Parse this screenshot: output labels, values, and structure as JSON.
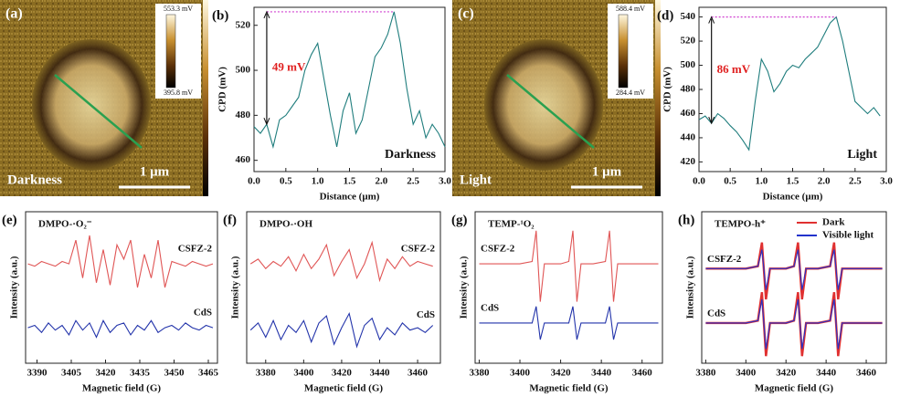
{
  "images": [
    {
      "label": "(a)",
      "cbar_max": "553.3 mV",
      "cbar_min": "395.8 mV",
      "condition": "Darkness",
      "scale": "1 μm"
    },
    {
      "label": "(c)",
      "cbar_max": "588.4 mV",
      "cbar_min": "284.4 mV",
      "condition": "Light",
      "scale": "1 μm"
    }
  ],
  "chart_data": [
    {
      "type": "line",
      "label": "(b)",
      "xlabel": "Distance (μm)",
      "ylabel": "CPD (mV)",
      "delta_label": "49 mV",
      "condition": "Darkness",
      "x": [
        0,
        0.1,
        0.2,
        0.3,
        0.4,
        0.5,
        0.6,
        0.7,
        0.8,
        0.9,
        1.0,
        1.1,
        1.2,
        1.3,
        1.4,
        1.5,
        1.6,
        1.7,
        1.8,
        1.9,
        2.0,
        2.1,
        2.2,
        2.3,
        2.4,
        2.5,
        2.6,
        2.7,
        2.8,
        2.9,
        3.0
      ],
      "series": [
        {
          "color": "#1f7d7d",
          "values": [
            475,
            472,
            476,
            466,
            478,
            480,
            484,
            488,
            500,
            507,
            512,
            496,
            480,
            466,
            482,
            490,
            472,
            478,
            492,
            506,
            510,
            516,
            526,
            512,
            492,
            476,
            482,
            470,
            476,
            472,
            466
          ]
        }
      ],
      "xlim": [
        0,
        3.0
      ],
      "ylim": [
        455,
        528
      ],
      "xticks": [
        {
          "value": 0,
          "label": "0.0"
        },
        0.5,
        {
          "value": 1,
          "label": "1.0"
        },
        1.5,
        {
          "value": 2,
          "label": "2.0"
        },
        2.5,
        {
          "value": 3,
          "label": "3.0"
        }
      ],
      "yticks": [
        460,
        480,
        500,
        520
      ]
    },
    {
      "type": "line",
      "label": "(d)",
      "xlabel": "Distance (μm)",
      "ylabel": "CPD (mV)",
      "delta_label": "86 mV",
      "condition": "Light",
      "x": [
        0,
        0.1,
        0.2,
        0.3,
        0.4,
        0.5,
        0.6,
        0.7,
        0.8,
        0.9,
        1.0,
        1.1,
        1.2,
        1.3,
        1.4,
        1.5,
        1.6,
        1.7,
        1.8,
        1.9,
        2.0,
        2.1,
        2.2,
        2.3,
        2.4,
        2.5,
        2.6,
        2.7,
        2.8,
        2.9
      ],
      "series": [
        {
          "color": "#1f7d7d",
          "values": [
            455,
            458,
            452,
            460,
            456,
            450,
            445,
            438,
            430,
            470,
            505,
            495,
            478,
            485,
            495,
            500,
            498,
            505,
            510,
            515,
            525,
            535,
            540,
            520,
            495,
            470,
            465,
            460,
            465,
            458
          ]
        }
      ],
      "xlim": [
        0,
        3.0
      ],
      "ylim": [
        412,
        548
      ],
      "xticks": [
        {
          "value": 0,
          "label": "0.0"
        },
        0.5,
        {
          "value": 1,
          "label": "1.0"
        },
        1.5,
        {
          "value": 2,
          "label": "2.0"
        },
        2.5,
        {
          "value": 3,
          "label": "3.0"
        }
      ],
      "yticks": [
        420,
        440,
        460,
        480,
        500,
        520,
        540
      ]
    },
    {
      "type": "line",
      "label": "(e)",
      "title": "DMPO-·O₂⁻",
      "xlabel": "Magnetic field (G)",
      "ylabel": "Intensity (a.u.)",
      "x": [
        3386,
        3389,
        3392,
        3395,
        3398,
        3401,
        3404,
        3407,
        3410,
        3413,
        3416,
        3419,
        3422,
        3425,
        3428,
        3431,
        3434,
        3437,
        3440,
        3443,
        3446,
        3449,
        3452,
        3455,
        3458,
        3461,
        3464,
        3467
      ],
      "series": [
        {
          "name": "CSFZ-2",
          "color": "#e05555",
          "values": [
            1.2,
            1.1,
            1.3,
            1.2,
            1.1,
            1.3,
            1.2,
            2.2,
            0.6,
            2.4,
            0.4,
            1.8,
            0.3,
            2.0,
            1.4,
            2.2,
            0.2,
            1.6,
            0.6,
            2.2,
            0.2,
            1.3,
            1.2,
            1.1,
            1.3,
            1.2,
            1.1,
            1.2
          ]
        },
        {
          "name": "CdS",
          "color": "#2233aa",
          "values": [
            -1.5,
            -1.4,
            -1.7,
            -1.3,
            -1.6,
            -1.4,
            -1.8,
            -1.2,
            -1.6,
            -1.3,
            -1.9,
            -1.2,
            -1.7,
            -1.4,
            -1.3,
            -1.8,
            -1.4,
            -1.6,
            -1.2,
            -1.7,
            -1.5,
            -1.4,
            -1.6,
            -1.3,
            -1.5,
            -1.6,
            -1.4,
            -1.5
          ]
        }
      ],
      "xlim": [
        3385,
        3469
      ],
      "ylim": [
        -3,
        3.4
      ],
      "xticks": [
        3390,
        3405,
        3420,
        3435,
        3450,
        3465
      ]
    },
    {
      "type": "line",
      "label": "(f)",
      "title": "DMPO-·OH",
      "xlabel": "Magnetic field (G)",
      "ylabel": "Intensity (a.u.)",
      "x": [
        3372,
        3376,
        3380,
        3384,
        3388,
        3392,
        3396,
        3400,
        3404,
        3408,
        3412,
        3416,
        3420,
        3424,
        3428,
        3432,
        3436,
        3440,
        3444,
        3448,
        3452,
        3456,
        3460,
        3464,
        3468
      ],
      "series": [
        {
          "name": "CSFZ-2",
          "color": "#e05555",
          "values": [
            1.2,
            1.4,
            1.0,
            1.3,
            1.1,
            1.5,
            0.9,
            1.6,
            1.0,
            1.4,
            2.0,
            0.7,
            1.3,
            1.8,
            0.6,
            1.2,
            2.1,
            0.5,
            1.4,
            1.0,
            1.5,
            1.1,
            1.3,
            1.2,
            1.1
          ]
        },
        {
          "name": "CdS",
          "color": "#2233aa",
          "values": [
            -1.6,
            -1.3,
            -1.9,
            -1.2,
            -2.0,
            -1.4,
            -1.7,
            -1.2,
            -2.1,
            -1.3,
            -1.0,
            -2.2,
            -1.5,
            -0.9,
            -2.3,
            -1.4,
            -1.1,
            -2.0,
            -1.5,
            -1.8,
            -1.3,
            -1.6,
            -1.5,
            -1.7,
            -1.4
          ]
        }
      ],
      "xlim": [
        3370,
        3472
      ],
      "ylim": [
        -3,
        3.4
      ],
      "xticks": [
        3380,
        3400,
        3420,
        3440,
        3460
      ]
    },
    {
      "type": "line",
      "label": "(g)",
      "title": "TEMP-¹O₂",
      "xlabel": "Magnetic field (G)",
      "ylabel": "Intensity (a.u.)",
      "x": [
        3380,
        3390,
        3400,
        3406,
        3408,
        3410,
        3412,
        3420,
        3424,
        3426,
        3428,
        3430,
        3436,
        3442,
        3444,
        3446,
        3448,
        3455,
        3468
      ],
      "series": [
        {
          "name": "CSFZ-2",
          "color": "#e05555",
          "values": [
            1.2,
            1.2,
            1.2,
            1.3,
            2.6,
            -0.4,
            1.2,
            1.2,
            1.3,
            2.6,
            -0.4,
            1.2,
            1.2,
            1.3,
            2.6,
            -0.4,
            1.2,
            1.2,
            1.2
          ]
        },
        {
          "name": "CdS",
          "color": "#2233aa",
          "values": [
            -1.3,
            -1.3,
            -1.3,
            -1.3,
            -0.6,
            -2.0,
            -1.3,
            -1.3,
            -1.3,
            -0.6,
            -2.0,
            -1.3,
            -1.3,
            -1.3,
            -0.6,
            -2.0,
            -1.3,
            -1.3,
            -1.3
          ]
        }
      ],
      "xlim": [
        3378,
        3470
      ],
      "ylim": [
        -3,
        3.4
      ],
      "xticks": [
        3380,
        3400,
        3420,
        3440,
        3460
      ]
    },
    {
      "type": "line",
      "label": "(h)",
      "title": "TEMPO-h⁺",
      "xlabel": "Magnetic field (G)",
      "ylabel": "Intensity (a.u.)",
      "legend": "top-right",
      "samples": [
        "CSFZ-2",
        "CdS"
      ],
      "x": [
        3380,
        3390,
        3400,
        3406,
        3408,
        3410,
        3412,
        3420,
        3424,
        3426,
        3428,
        3430,
        3436,
        3442,
        3444,
        3446,
        3448,
        3455,
        3468
      ],
      "series": [
        {
          "name": "Dark",
          "color": "#e03030",
          "values": [
            [
              1.0,
              1.0,
              1.0,
              1.1,
              2.1,
              -0.3,
              1.0,
              1.0,
              1.1,
              2.1,
              -0.3,
              1.0,
              1.0,
              1.1,
              2.1,
              -0.3,
              1.0,
              1.0,
              1.0
            ],
            [
              -1.3,
              -1.3,
              -1.3,
              -1.2,
              0.0,
              -2.7,
              -1.3,
              -1.3,
              -1.2,
              0.0,
              -2.7,
              -1.3,
              -1.3,
              -1.2,
              0.0,
              -2.7,
              -1.3,
              -1.3,
              -1.3
            ]
          ]
        },
        {
          "name": "Visible light",
          "color": "#2233cc",
          "values": [
            [
              1.0,
              1.0,
              1.0,
              1.1,
              1.8,
              0.1,
              1.0,
              1.0,
              1.1,
              1.8,
              0.1,
              1.0,
              1.0,
              1.1,
              1.8,
              0.1,
              1.0,
              1.0,
              1.0
            ],
            [
              -1.3,
              -1.3,
              -1.3,
              -1.2,
              -0.3,
              -2.4,
              -1.3,
              -1.3,
              -1.2,
              -0.3,
              -2.4,
              -1.3,
              -1.3,
              -1.2,
              -0.3,
              -2.4,
              -1.3,
              -1.3,
              -1.3
            ]
          ]
        }
      ],
      "xlim": [
        3378,
        3470
      ],
      "ylim": [
        -3,
        3.4
      ],
      "xticks": [
        3380,
        3400,
        3420,
        3440,
        3460
      ]
    }
  ]
}
